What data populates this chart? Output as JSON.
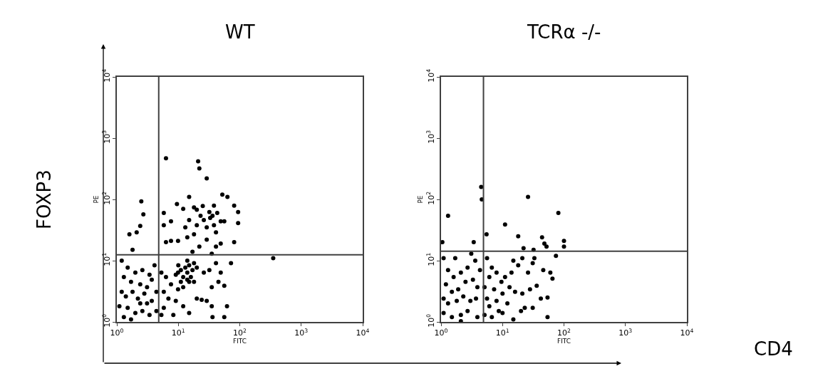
{
  "chart_data": [
    {
      "type": "scatter",
      "title": "WT",
      "xlabel": "FITC",
      "ylabel": "PE",
      "annotations": [
        "FOXP3"
      ],
      "log": "xy",
      "marker": "circle",
      "xlim": [
        1,
        10000
      ],
      "ylim": [
        1,
        10000
      ],
      "xticks": [
        {
          "value": 1,
          "label": "10$^{0}$"
        },
        {
          "value": 10,
          "label": "10$^{1}$"
        },
        {
          "value": 100,
          "label": "10$^{2}$"
        },
        {
          "value": 1000,
          "label": "10$^{3}$"
        },
        {
          "value": 10000,
          "label": "10$^{4}$"
        }
      ],
      "yticks": [
        {
          "value": 1,
          "label": "10$^{0}$"
        },
        {
          "value": 10,
          "label": "10$^{1}$"
        },
        {
          "value": 100,
          "label": "10$^{2}$"
        },
        {
          "value": 1000,
          "label": "10$^{3}$"
        },
        {
          "value": 10000,
          "label": "10$^{4}$"
        }
      ],
      "ref_lines": [
        {
          "axis": "x",
          "value": 4.8,
          "color": "#404040"
        },
        {
          "axis": "y",
          "value": 12.5,
          "color": "#404040"
        }
      ],
      "series": [
        {
          "color": "#000000",
          "x": [
            6.3,
            21,
            22,
            29,
            15,
            52,
            63,
            81,
            94,
            94,
            2.5,
            2.7,
            2.4,
            1.6,
            2.1,
            1.8,
            81,
            350,
            72,
            62,
            56,
            36,
            5.8,
            7.6,
            9.5,
            12,
            18,
            20,
            23,
            26,
            29,
            33,
            36,
            38,
            41,
            49,
            56,
            29,
            18,
            14,
            9.9,
            7.6,
            6.3,
            22,
            41,
            49,
            17,
            35,
            5.8,
            13,
            15,
            25,
            32,
            20,
            38,
            43,
            9.9,
            11,
            13,
            14,
            15,
            17,
            12,
            14,
            15,
            11,
            9.1,
            18,
            16,
            12,
            9.9,
            20,
            18,
            10,
            14,
            1.2,
            1.5,
            2.0,
            2.6,
            3.4,
            4.1,
            1.3,
            1.7,
            2.4,
            3.1,
            3.7,
            1.2,
            1.4,
            1.8,
            2.2,
            2.8,
            3.7,
            4.4,
            1.1,
            1.5,
            2.0,
            2.6,
            3.4,
            1.3,
            1.7,
            4.4,
            3.1,
            2.4,
            5.3,
            6.3,
            7.6,
            5.8,
            6.9,
            9.1,
            12,
            15,
            5.8,
            8.3,
            24,
            29,
            35,
            20,
            5.3,
            35,
            26,
            32,
            41,
            45,
            56,
            49
          ],
          "values": [
            470,
            420,
            320,
            220,
            110,
            120,
            110,
            79,
            62,
            41,
            93,
            57,
            37,
            27,
            29,
            15,
            20,
            11,
            9.1,
            1.8,
            1.2,
            1.2,
            60,
            44,
            84,
            70,
            74,
            68,
            54,
            46,
            35,
            50,
            54,
            38,
            29,
            44,
            44,
            22,
            27,
            24,
            21,
            21,
            20,
            17,
            17,
            19,
            14,
            13,
            38,
            35,
            46,
            78,
            62,
            38,
            79,
            60,
            6.4,
            7.0,
            7.7,
            6.4,
            8.4,
            7.0,
            5.4,
            4.9,
            4.5,
            4.5,
            5.9,
            9.1,
            5.4,
            3.7,
            3.4,
            7.7,
            4.5,
            8.4,
            10,
            10,
            7.7,
            6.4,
            7.0,
            5.9,
            8.4,
            5.4,
            4.5,
            4.1,
            3.7,
            4.9,
            3.1,
            2.6,
            3.1,
            2.4,
            2.9,
            2.2,
            3.1,
            1.8,
            1.7,
            1.4,
            1.5,
            1.3,
            1.2,
            1.1,
            1.5,
            2.0,
            2.0,
            6.4,
            5.4,
            4.1,
            3.1,
            2.4,
            2.2,
            1.8,
            1.4,
            1.7,
            1.3,
            2.3,
            2.2,
            1.8,
            2.4,
            1.3,
            3.7,
            6.4,
            7.0,
            9.1,
            4.5,
            3.9,
            6.4
          ]
        }
      ]
    },
    {
      "type": "scatter",
      "title": "TCRα -/-",
      "xlabel": "FITC",
      "ylabel": "PE",
      "annotations": [
        "CD4"
      ],
      "log": "xy",
      "marker": "circle",
      "xlim": [
        1,
        10000
      ],
      "ylim": [
        1,
        10000
      ],
      "xticks": [
        {
          "value": 1,
          "label": "10$^{0}$"
        },
        {
          "value": 10,
          "label": "10$^{1}$"
        },
        {
          "value": 100,
          "label": "10$^{2}$"
        },
        {
          "value": 1000,
          "label": "10$^{3}$"
        },
        {
          "value": 10000,
          "label": "10$^{4}$"
        }
      ],
      "yticks": [
        {
          "value": 1,
          "label": "10$^{0}$"
        },
        {
          "value": 10,
          "label": "10$^{1}$"
        },
        {
          "value": 100,
          "label": "10$^{2}$"
        },
        {
          "value": 1000,
          "label": "10$^{3}$"
        },
        {
          "value": 10000,
          "label": "10$^{4}$"
        }
      ],
      "ref_lines": [
        {
          "axis": "x",
          "value": 4.9,
          "color": "#404040"
        },
        {
          "axis": "y",
          "value": 14.3,
          "color": "#404040"
        }
      ],
      "series": [
        {
          "color": "#000000",
          "x": [
            4.5,
            4.6,
            26,
            1.3,
            11,
            81,
            5.5,
            1.05,
            3.4,
            18,
            44,
            48,
            52,
            100,
            100,
            74,
            32,
            22,
            3.1,
            1.7,
            54,
            1.1,
            1.3,
            1.6,
            2.1,
            2.7,
            3.6,
            4.3,
            1.2,
            1.5,
            1.9,
            2.5,
            3.3,
            3.9,
            1.1,
            1.3,
            1.8,
            2.3,
            3.0,
            3.7,
            1.1,
            1.5,
            2.1,
            2.7,
            3.9,
            2.1,
            5.6,
            6.7,
            8.0,
            6.1,
            5.1,
            7.3,
            9.6,
            11,
            14,
            15,
            18,
            21,
            26,
            31,
            33,
            46,
            60,
            65,
            36,
            28,
            21,
            16,
            13,
            10,
            8.0,
            6.1,
            5.1,
            6.7,
            10,
            15,
            20,
            23,
            31,
            42,
            54,
            5.6,
            12,
            8.7
          ],
          "values": [
            160,
            100,
            110,
            54,
            39,
            60,
            27,
            20,
            20,
            25,
            24,
            19,
            17,
            21,
            17,
            12,
            15,
            16,
            13,
            11,
            1.2,
            11,
            7.0,
            5.4,
            6.4,
            7.7,
            10,
            7.0,
            4.1,
            3.1,
            3.4,
            4.5,
            4.9,
            3.7,
            2.4,
            2.0,
            2.2,
            2.6,
            2.2,
            2.4,
            1.4,
            1.2,
            1.3,
            1.5,
            1.2,
            1.03,
            11,
            7.7,
            6.4,
            5.4,
            3.7,
            3.4,
            4.5,
            5.4,
            6.4,
            10,
            8.4,
            11,
            6.4,
            9.1,
            11,
            7.0,
            6.4,
            5.1,
            3.9,
            3.4,
            2.9,
            3.1,
            3.7,
            2.9,
            2.2,
            1.8,
            1.3,
            1.2,
            1.4,
            1.1,
            1.5,
            1.7,
            1.7,
            2.4,
            2.5,
            2.4,
            2.0,
            1.5
          ]
        }
      ]
    }
  ]
}
